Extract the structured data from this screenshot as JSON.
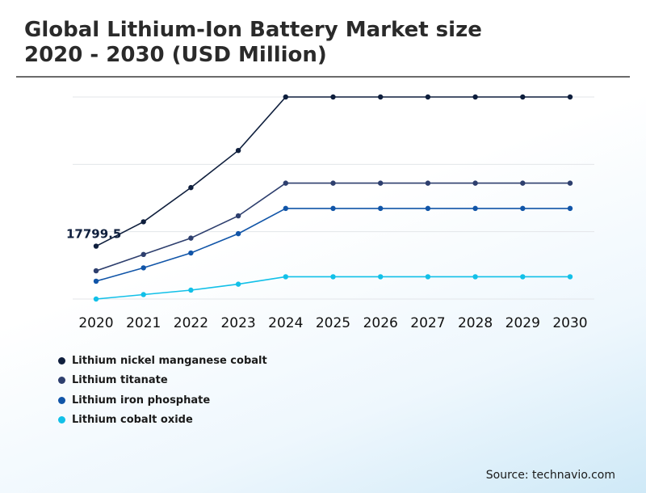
{
  "title": {
    "line1": "Global Lithium-Ion Battery Market size",
    "line2": "2020 - 2030 (USD Million)"
  },
  "source": "Source: technavio.com",
  "chart_data": {
    "type": "line",
    "categories": [
      "2020",
      "2021",
      "2022",
      "2023",
      "2024",
      "2025",
      "2026",
      "2027",
      "2028",
      "2029",
      "2030"
    ],
    "ylim": [
      0,
      68000
    ],
    "grid": true,
    "legend_position": "bottom-left",
    "series": [
      {
        "name": "Lithium nickel manganese cobalt",
        "color": "#0f1f3d",
        "values": [
          17799.5,
          26000,
          37500,
          50000,
          68000,
          68000,
          68000,
          68000,
          68000,
          68000,
          68000
        ]
      },
      {
        "name": "Lithium titanate",
        "color": "#2e3f6e",
        "values": [
          9500,
          15000,
          20500,
          28000,
          39000,
          39000,
          39000,
          39000,
          39000,
          39000,
          39000
        ]
      },
      {
        "name": "Lithium iron phosphate",
        "color": "#1155a8",
        "values": [
          6000,
          10500,
          15500,
          22000,
          30500,
          30500,
          30500,
          30500,
          30500,
          30500,
          30500
        ]
      },
      {
        "name": "Lithium cobalt oxide",
        "color": "#12c0e8",
        "values": [
          0,
          1500,
          3000,
          5000,
          7500,
          7500,
          7500,
          7500,
          7500,
          7500,
          7500
        ]
      }
    ],
    "annotations": [
      {
        "series": 0,
        "category": "2020",
        "text": "17799.5"
      }
    ]
  }
}
